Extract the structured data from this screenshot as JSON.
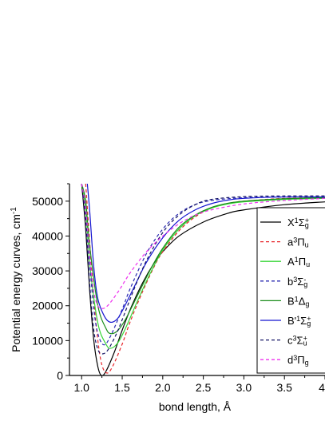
{
  "chart_data": {
    "type": "line",
    "title": "",
    "xlabel": "bond length, Å",
    "ylabel": "Potential energy curves, cm",
    "ylabel_superscript": "-1",
    "xlim": [
      0.85,
      4.0
    ],
    "ylim": [
      0,
      55000
    ],
    "xticks": [
      1.0,
      1.5,
      2.0,
      2.5,
      3.0,
      3.5,
      4.0
    ],
    "xtick_labels": [
      "1.0",
      "1.5",
      "2.0",
      "2.5",
      "3.0",
      "3.5",
      "4"
    ],
    "yticks": [
      0,
      10000,
      20000,
      30000,
      40000,
      50000
    ],
    "ytick_labels": [
      "0",
      "10000",
      "20000",
      "30000",
      "40000",
      "50000"
    ],
    "grid": false,
    "legend_position": "right",
    "series": [
      {
        "name": "X",
        "sup": "1",
        "sym": "Σ",
        "sub": "g",
        "sup2": "+",
        "color": "#000000",
        "dash": "solid",
        "points": [
          [
            1.0,
            55000
          ],
          [
            1.05,
            42000
          ],
          [
            1.1,
            24000
          ],
          [
            1.15,
            10000
          ],
          [
            1.2,
            2500
          ],
          [
            1.243,
            0
          ],
          [
            1.3,
            1200
          ],
          [
            1.4,
            6500
          ],
          [
            1.5,
            13000
          ],
          [
            1.6,
            19000
          ],
          [
            1.75,
            26500
          ],
          [
            1.9,
            32500
          ],
          [
            2.0,
            35500
          ],
          [
            2.2,
            40000
          ],
          [
            2.5,
            44000
          ],
          [
            2.8,
            46500
          ],
          [
            3.0,
            47500
          ],
          [
            3.5,
            49000
          ],
          [
            4.0,
            49800
          ]
        ]
      },
      {
        "name": "a",
        "sup": "3",
        "sym": "Π",
        "sub": "u",
        "sup2": "",
        "color": "#e8262b",
        "dash": "4,3",
        "points": [
          [
            1.05,
            55000
          ],
          [
            1.1,
            38000
          ],
          [
            1.15,
            22000
          ],
          [
            1.2,
            10000
          ],
          [
            1.25,
            3000
          ],
          [
            1.31,
            700
          ],
          [
            1.38,
            2500
          ],
          [
            1.5,
            9000
          ],
          [
            1.6,
            15500
          ],
          [
            1.75,
            24000
          ],
          [
            1.9,
            31500
          ],
          [
            2.0,
            35500
          ],
          [
            2.2,
            41500
          ],
          [
            2.4,
            45500
          ],
          [
            2.6,
            48000
          ],
          [
            2.8,
            49300
          ],
          [
            3.0,
            50000
          ],
          [
            3.5,
            50800
          ],
          [
            4.0,
            51000
          ]
        ]
      },
      {
        "name": "A",
        "sup": "1",
        "sym": "Π",
        "sub": "u",
        "sup2": "",
        "color": "#37d637",
        "dash": "solid",
        "points": [
          [
            1.0,
            55000
          ],
          [
            1.05,
            48000
          ],
          [
            1.1,
            32000
          ],
          [
            1.2,
            15000
          ],
          [
            1.3,
            9000
          ],
          [
            1.36,
            7800
          ],
          [
            1.45,
            9500
          ],
          [
            1.55,
            14000
          ],
          [
            1.7,
            22000
          ],
          [
            1.85,
            29500
          ],
          [
            2.0,
            36000
          ],
          [
            2.2,
            42000
          ],
          [
            2.4,
            45800
          ],
          [
            2.6,
            48000
          ],
          [
            2.8,
            49200
          ],
          [
            3.0,
            49800
          ],
          [
            3.5,
            50500
          ],
          [
            4.0,
            50800
          ]
        ]
      },
      {
        "name": "b",
        "sup": "3",
        "sym": "Σ",
        "sub": "g",
        "sup2": "-",
        "color": "#2a2ab0",
        "dash": "4,3",
        "points": [
          [
            1.0,
            55000
          ],
          [
            1.05,
            47000
          ],
          [
            1.1,
            32000
          ],
          [
            1.15,
            19000
          ],
          [
            1.2,
            12000
          ],
          [
            1.27,
            8800
          ],
          [
            1.35,
            11000
          ],
          [
            1.5,
            19000
          ],
          [
            1.6,
            25000
          ],
          [
            1.8,
            35000
          ],
          [
            2.0,
            42000
          ],
          [
            2.2,
            46500
          ],
          [
            2.4,
            49000
          ],
          [
            2.6,
            50200
          ],
          [
            3.0,
            51000
          ],
          [
            3.5,
            51200
          ],
          [
            4.0,
            51200
          ]
        ]
      },
      {
        "name": "B",
        "sup": "1",
        "sym": "Δ",
        "sub": "g",
        "sup2": "",
        "color": "#1a8c1a",
        "dash": "solid",
        "points": [
          [
            1.0,
            55000
          ],
          [
            1.05,
            50000
          ],
          [
            1.1,
            37000
          ],
          [
            1.2,
            20000
          ],
          [
            1.3,
            13500
          ],
          [
            1.36,
            12000
          ],
          [
            1.45,
            13000
          ],
          [
            1.55,
            16500
          ],
          [
            1.7,
            23500
          ],
          [
            1.85,
            30500
          ],
          [
            2.0,
            36500
          ],
          [
            2.2,
            42500
          ],
          [
            2.4,
            46000
          ],
          [
            2.6,
            48200
          ],
          [
            2.8,
            49400
          ],
          [
            3.0,
            50000
          ],
          [
            3.5,
            50700
          ],
          [
            4.0,
            51000
          ]
        ]
      },
      {
        "name": "B'",
        "sup": "1",
        "sym": "Σ",
        "sub": "g",
        "sup2": "+",
        "color": "#1515d0",
        "dash": "solid",
        "points": [
          [
            1.07,
            55000
          ],
          [
            1.1,
            47000
          ],
          [
            1.15,
            31000
          ],
          [
            1.2,
            22000
          ],
          [
            1.28,
            17000
          ],
          [
            1.35,
            15300
          ],
          [
            1.43,
            16000
          ],
          [
            1.5,
            18500
          ],
          [
            1.65,
            25500
          ],
          [
            1.8,
            32500
          ],
          [
            2.0,
            39500
          ],
          [
            2.2,
            44500
          ],
          [
            2.4,
            47500
          ],
          [
            2.6,
            49300
          ],
          [
            2.8,
            50300
          ],
          [
            3.0,
            50800
          ],
          [
            3.5,
            51200
          ],
          [
            4.0,
            51200
          ]
        ]
      },
      {
        "name": "c",
        "sup": "3",
        "sym": "Σ",
        "sub": "u",
        "sup2": "+",
        "color": "#141466",
        "dash": "4,3",
        "points": [
          [
            1.0,
            55000
          ],
          [
            1.05,
            44000
          ],
          [
            1.1,
            26000
          ],
          [
            1.15,
            13000
          ],
          [
            1.2,
            7500
          ],
          [
            1.25,
            6200
          ],
          [
            1.32,
            7200
          ],
          [
            1.42,
            11500
          ],
          [
            1.5,
            16000
          ],
          [
            1.65,
            25000
          ],
          [
            1.8,
            33000
          ],
          [
            2.0,
            41000
          ],
          [
            2.2,
            46000
          ],
          [
            2.4,
            49000
          ],
          [
            2.6,
            50500
          ],
          [
            3.0,
            51300
          ],
          [
            3.5,
            51500
          ],
          [
            4.0,
            51500
          ]
        ]
      },
      {
        "name": "d",
        "sup": "3",
        "sym": "Π",
        "sub": "g",
        "sup2": "",
        "color": "#ee30ee",
        "dash": "4,3",
        "points": [
          [
            1.0,
            55000
          ],
          [
            1.05,
            48000
          ],
          [
            1.1,
            34000
          ],
          [
            1.15,
            24000
          ],
          [
            1.2,
            20000
          ],
          [
            1.25,
            19200
          ],
          [
            1.32,
            20000
          ],
          [
            1.45,
            24000
          ],
          [
            1.6,
            29500
          ],
          [
            1.8,
            35500
          ],
          [
            2.0,
            40000
          ],
          [
            2.2,
            43500
          ],
          [
            2.4,
            46000
          ],
          [
            2.6,
            47500
          ],
          [
            3.0,
            49200
          ],
          [
            3.5,
            50200
          ],
          [
            4.0,
            50800
          ]
        ]
      }
    ]
  }
}
